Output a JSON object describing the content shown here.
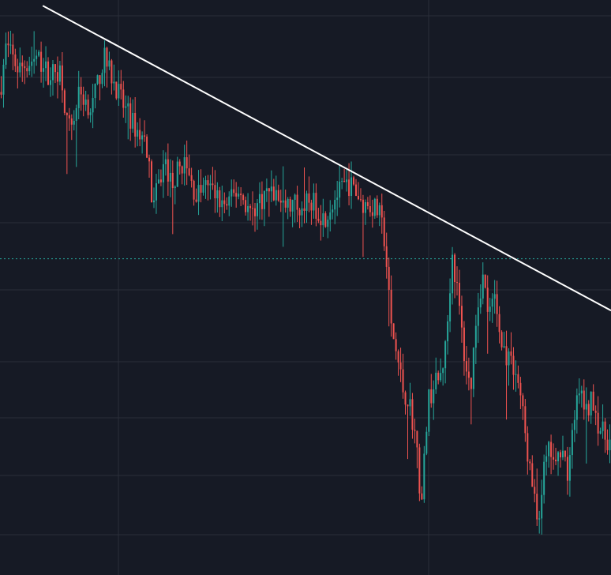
{
  "colors": {
    "background": "#161a25",
    "grid": "#2a2e39",
    "up": "#26a69a",
    "down": "#ef5350",
    "trendline": "#ffffff",
    "reference": "#26a69a"
  },
  "chart_data": {
    "type": "candlestick",
    "title": "",
    "xlabel": "",
    "ylabel": "",
    "axis_labels_visible": false,
    "grid": true,
    "legend": "none",
    "ylim": [
      0,
      100
    ],
    "xlim": [
      0,
      100
    ],
    "candle_count": 260,
    "close_path": [
      [
        0,
        84
      ],
      [
        1,
        92
      ],
      [
        3,
        88
      ],
      [
        6,
        90
      ],
      [
        8,
        87
      ],
      [
        10,
        88
      ],
      [
        11,
        78
      ],
      [
        12,
        79
      ],
      [
        13,
        84
      ],
      [
        15,
        81
      ],
      [
        17,
        90
      ],
      [
        19,
        85
      ],
      [
        20,
        82
      ],
      [
        22,
        78
      ],
      [
        24,
        75
      ],
      [
        25,
        64
      ],
      [
        27,
        72
      ],
      [
        28,
        68
      ],
      [
        30,
        72
      ],
      [
        32,
        66
      ],
      [
        34,
        68
      ],
      [
        36,
        65
      ],
      [
        37,
        64
      ],
      [
        39,
        67
      ],
      [
        41,
        63
      ],
      [
        44,
        67
      ],
      [
        47,
        64
      ],
      [
        51,
        65
      ],
      [
        53,
        62
      ],
      [
        55,
        66
      ],
      [
        57,
        68
      ],
      [
        58,
        67
      ],
      [
        59,
        65
      ],
      [
        61,
        64
      ],
      [
        62,
        63
      ],
      [
        63,
        58
      ],
      [
        64,
        43
      ],
      [
        65,
        38
      ],
      [
        66,
        32
      ],
      [
        67,
        30
      ],
      [
        68,
        24
      ],
      [
        69,
        12
      ],
      [
        70,
        30
      ],
      [
        71,
        33
      ],
      [
        72,
        34
      ],
      [
        73,
        40
      ],
      [
        74,
        56
      ],
      [
        75,
        48
      ],
      [
        76,
        38
      ],
      [
        77,
        32
      ],
      [
        78,
        46
      ],
      [
        79,
        52
      ],
      [
        80,
        45
      ],
      [
        81,
        48
      ],
      [
        82,
        40
      ],
      [
        83,
        38
      ],
      [
        84,
        36
      ],
      [
        85,
        33
      ],
      [
        86,
        24
      ],
      [
        87,
        16
      ],
      [
        88,
        9
      ],
      [
        89,
        18
      ],
      [
        90,
        22
      ],
      [
        91,
        18
      ],
      [
        92,
        24
      ],
      [
        93,
        16
      ],
      [
        94,
        28
      ],
      [
        95,
        32
      ],
      [
        96,
        28
      ],
      [
        97,
        31
      ],
      [
        98,
        26
      ],
      [
        99,
        24
      ],
      [
        100,
        23
      ]
    ],
    "price_line": 55,
    "trendline": {
      "start": [
        7,
        99
      ],
      "end": [
        100,
        46
      ]
    }
  }
}
